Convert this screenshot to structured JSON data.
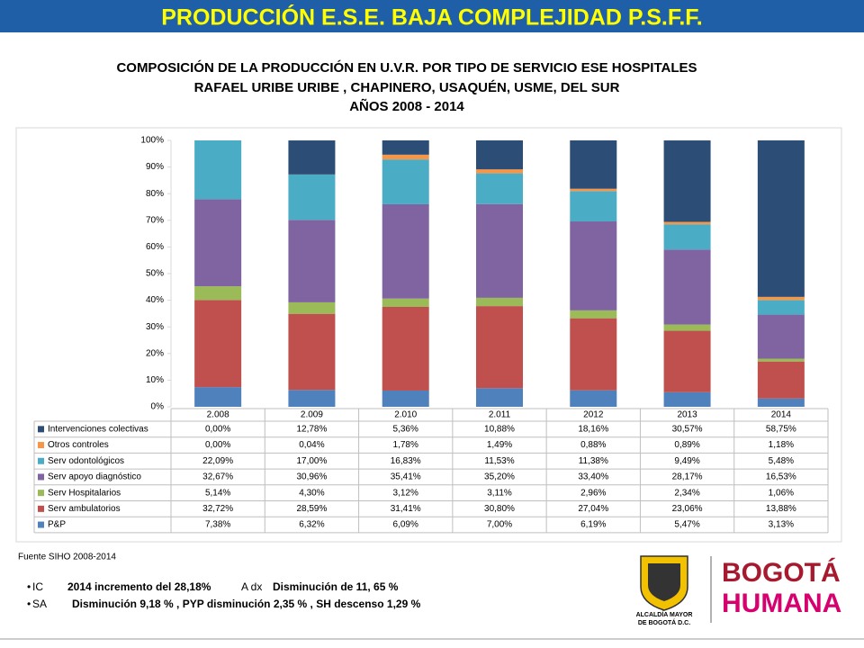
{
  "header": {
    "title": "PRODUCCIÓN E.S.E. BAJA COMPLEJIDAD P.S.F.F."
  },
  "chart_data": {
    "type": "stacked_bar",
    "title": [
      "COMPOSICIÓN DE LA PRODUCCIÓN EN U.V.R. POR TIPO DE SERVICIO ESE HOSPITALES",
      "RAFAEL URIBE URIBE , CHAPINERO, USAQUÉN, USME, DEL SUR",
      "AÑOS  2008 - 2014"
    ],
    "categories": [
      "2.008",
      "2.009",
      "2.010",
      "2.011",
      "2012",
      "2013",
      "2014"
    ],
    "series": [
      {
        "name": "P&P",
        "color": "#4f81bd",
        "values": [
          7.38,
          6.32,
          6.09,
          7.0,
          6.19,
          5.47,
          3.13
        ],
        "value_labels": [
          "7,38%",
          "6,32%",
          "6,09%",
          "7,00%",
          "6,19%",
          "5,47%",
          "3,13%"
        ]
      },
      {
        "name": "Serv ambulatorios",
        "color": "#c0504d",
        "values": [
          32.72,
          28.59,
          31.41,
          30.8,
          27.04,
          23.06,
          13.88
        ],
        "value_labels": [
          "32,72%",
          "28,59%",
          "31,41%",
          "30,80%",
          "27,04%",
          "23,06%",
          "13,88%"
        ]
      },
      {
        "name": "Serv Hospitalarios",
        "color": "#9bbb59",
        "values": [
          5.14,
          4.3,
          3.12,
          3.11,
          2.96,
          2.34,
          1.06
        ],
        "value_labels": [
          "5,14%",
          "4,30%",
          "3,12%",
          "3,11%",
          "2,96%",
          "2,34%",
          "1,06%"
        ]
      },
      {
        "name": "Serv apoyo diagnóstico",
        "color": "#8064a2",
        "values": [
          32.67,
          30.96,
          35.41,
          35.2,
          33.4,
          28.17,
          16.53
        ],
        "value_labels": [
          "32,67%",
          "30,96%",
          "35,41%",
          "35,20%",
          "33,40%",
          "28,17%",
          "16,53%"
        ]
      },
      {
        "name": "Serv odontológicos",
        "color": "#4bacc6",
        "values": [
          22.09,
          17.0,
          16.83,
          11.53,
          11.38,
          9.49,
          5.48
        ],
        "value_labels": [
          "22,09%",
          "17,00%",
          "16,83%",
          "11,53%",
          "11,38%",
          "9,49%",
          "5,48%"
        ]
      },
      {
        "name": "Otros controles",
        "color": "#f79646",
        "values": [
          0.0,
          0.04,
          1.78,
          1.49,
          0.88,
          0.89,
          1.18
        ],
        "value_labels": [
          "0,00%",
          "0,04%",
          "1,78%",
          "1,49%",
          "0,88%",
          "0,89%",
          "1,18%"
        ]
      },
      {
        "name": "Intervenciones colectivas",
        "color": "#2c4d75",
        "values": [
          0.0,
          12.78,
          5.36,
          10.88,
          18.16,
          30.57,
          58.75
        ],
        "value_labels": [
          "0,00%",
          "12,78%",
          "5,36%",
          "10,88%",
          "18,16%",
          "30,57%",
          "58,75%"
        ]
      }
    ],
    "ylim": [
      0,
      100
    ],
    "yticks": [
      {
        "value": 0,
        "label": "0%"
      },
      {
        "value": 10,
        "label": "10%"
      },
      {
        "value": 20,
        "label": "20%"
      },
      {
        "value": 30,
        "label": "30%"
      },
      {
        "value": 40,
        "label": "40%"
      },
      {
        "value": 50,
        "label": "50%"
      },
      {
        "value": 60,
        "label": "60%"
      },
      {
        "value": 70,
        "label": "70%"
      },
      {
        "value": 80,
        "label": "80%"
      },
      {
        "value": 90,
        "label": "90%"
      },
      {
        "value": 100,
        "label": "100%"
      }
    ],
    "grid": false,
    "source": "Fuente SIHO 2008-2014"
  },
  "notes": [
    [
      "IC",
      "2014  incremento del 28,18%",
      "A dx",
      "Disminución de 11, 65  %"
    ],
    [
      "SA",
      "Disminución  9,18 % , PYP  disminución  2,35 % , SH  descenso  1,29 %"
    ]
  ],
  "logo": {
    "alcaldia": [
      "ALCALDÍA MAYOR",
      "DE BOGOTÁ D.C."
    ],
    "brand": [
      "BOGOTÁ",
      "HUMANA"
    ]
  }
}
